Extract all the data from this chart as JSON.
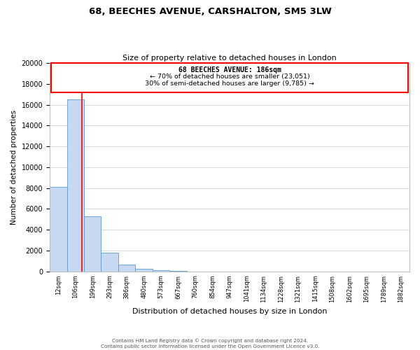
{
  "title": "68, BEECHES AVENUE, CARSHALTON, SM5 3LW",
  "subtitle": "Size of property relative to detached houses in London",
  "xlabel": "Distribution of detached houses by size in London",
  "ylabel": "Number of detached properties",
  "categories": [
    "12sqm",
    "106sqm",
    "199sqm",
    "293sqm",
    "386sqm",
    "480sqm",
    "573sqm",
    "667sqm",
    "760sqm",
    "854sqm",
    "947sqm",
    "1041sqm",
    "1134sqm",
    "1228sqm",
    "1321sqm",
    "1415sqm",
    "1508sqm",
    "1602sqm",
    "1695sqm",
    "1789sqm",
    "1882sqm"
  ],
  "bar_heights": [
    8100,
    16500,
    5300,
    1800,
    650,
    280,
    130,
    50,
    0,
    0,
    0,
    0,
    0,
    0,
    0,
    0,
    0,
    0,
    0,
    0,
    0
  ],
  "bar_color": "#c6d9f0",
  "bar_edgecolor": "#5b9bd5",
  "property_line_x": 1.88,
  "property_line_label": "68 BEECHES AVENUE: 186sqm",
  "annotation_smaller": "← 70% of detached houses are smaller (23,051)",
  "annotation_larger": "30% of semi-detached houses are larger (9,785) →",
  "box_facecolor": "white",
  "box_edgecolor": "red",
  "line_color": "red",
  "ylim": [
    0,
    20000
  ],
  "yticks": [
    0,
    2000,
    4000,
    6000,
    8000,
    10000,
    12000,
    14000,
    16000,
    18000,
    20000
  ],
  "footer1": "Contains HM Land Registry data © Crown copyright and database right 2024.",
  "footer2": "Contains public sector information licensed under the Open Government Licence v3.0.",
  "bg_color": "#ffffff",
  "grid_color": "#d9d9d9"
}
